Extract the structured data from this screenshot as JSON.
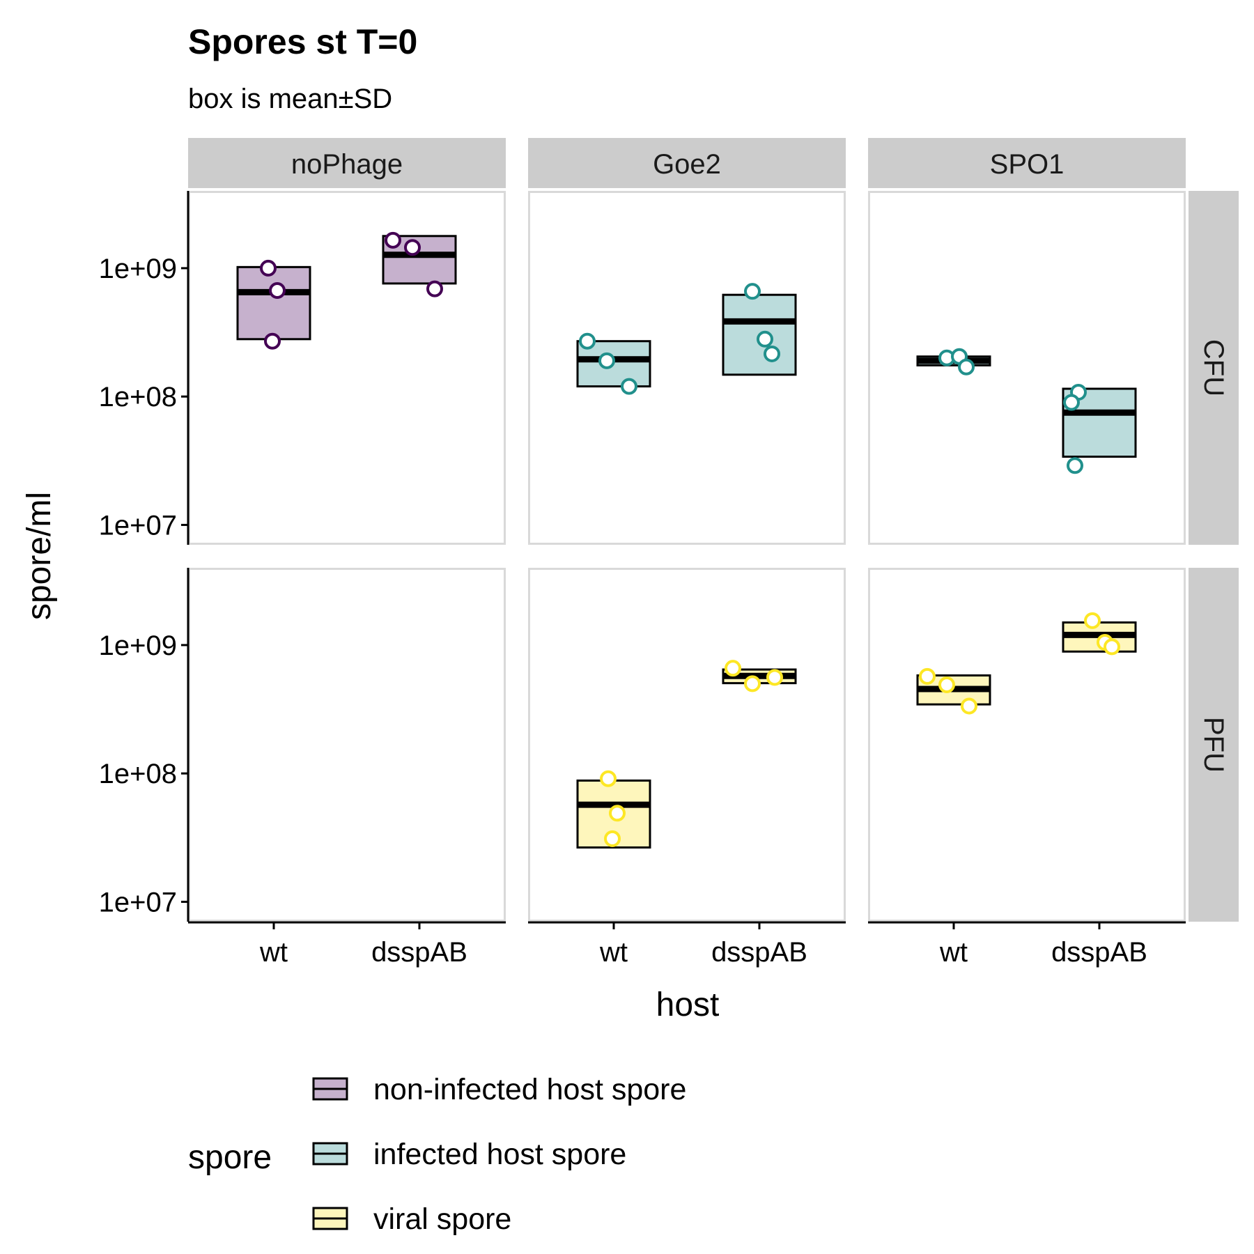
{
  "chart_data": {
    "type": "box",
    "title": "Spores st T=0",
    "subtitle": "box is mean±SD",
    "xlabel": "host",
    "ylabel": "spore/ml",
    "y_scale": "log10",
    "ylim": [
      7000000,
      4000000000
    ],
    "y_ticks": [
      10000000,
      100000000,
      1000000000
    ],
    "y_tick_labels": [
      "1e+07",
      "1e+08",
      "1e+09"
    ],
    "categories": [
      "wt",
      "dsspAB"
    ],
    "facet_cols": [
      "noPhage",
      "Goe2",
      "SPO1"
    ],
    "facet_rows": [
      "CFU",
      "PFU"
    ],
    "legend": {
      "title": "spore",
      "position": "bottom",
      "items": [
        {
          "label": "non-infected host spore",
          "fill": "#C6B1CD",
          "point": "#440154"
        },
        {
          "label": "infected host spore",
          "fill": "#BBDCDC",
          "point": "#21908C"
        },
        {
          "label": "viral spore",
          "fill": "#FEF6BC",
          "point": "#FDE725"
        }
      ]
    },
    "panels": [
      {
        "row": "CFU",
        "col": "noPhage",
        "groups": [
          {
            "host": "wt",
            "spore": 0,
            "mean": 650000000,
            "lower": 280000000,
            "upper": 1020000000,
            "points": [
              1000000000,
              670000000,
              270000000
            ]
          },
          {
            "host": "dsspAB",
            "spore": 0,
            "mean": 1270000000,
            "lower": 760000000,
            "upper": 1780000000,
            "points": [
              1650000000,
              1450000000,
              690000000
            ]
          }
        ]
      },
      {
        "row": "CFU",
        "col": "Goe2",
        "groups": [
          {
            "host": "wt",
            "spore": 1,
            "mean": 195000000,
            "lower": 120000000,
            "upper": 270000000,
            "points": [
              270000000,
              190000000,
              120000000
            ]
          },
          {
            "host": "dsspAB",
            "spore": 1,
            "mean": 385000000,
            "lower": 148000000,
            "upper": 620000000,
            "points": [
              660000000,
              280000000,
              215000000
            ]
          }
        ]
      },
      {
        "row": "CFU",
        "col": "SPO1",
        "groups": [
          {
            "host": "wt",
            "spore": 1,
            "mean": 190000000,
            "lower": 175000000,
            "upper": 205000000,
            "points": [
              200000000,
              205000000,
              170000000
            ]
          },
          {
            "host": "dsspAB",
            "spore": 1,
            "mean": 75000000,
            "lower": 34000000,
            "upper": 115000000,
            "points": [
              108000000,
              90000000,
              29000000
            ]
          }
        ]
      },
      {
        "row": "PFU",
        "col": "noPhage",
        "groups": []
      },
      {
        "row": "PFU",
        "col": "Goe2",
        "groups": [
          {
            "host": "wt",
            "spore": 2,
            "mean": 57000000,
            "lower": 26500000,
            "upper": 88000000,
            "points": [
              91000000,
              49000000,
              31000000
            ]
          },
          {
            "host": "dsspAB",
            "spore": 2,
            "mean": 575000000,
            "lower": 505000000,
            "upper": 645000000,
            "points": [
              660000000,
              500000000,
              560000000
            ]
          }
        ]
      },
      {
        "row": "PFU",
        "col": "SPO1",
        "groups": [
          {
            "host": "wt",
            "spore": 2,
            "mean": 455000000,
            "lower": 345000000,
            "upper": 580000000,
            "points": [
              570000000,
              490000000,
              335000000
            ]
          },
          {
            "host": "dsspAB",
            "spore": 2,
            "mean": 1200000000,
            "lower": 890000000,
            "upper": 1500000000,
            "points": [
              1550000000,
              1050000000,
              970000000
            ]
          }
        ]
      }
    ]
  }
}
